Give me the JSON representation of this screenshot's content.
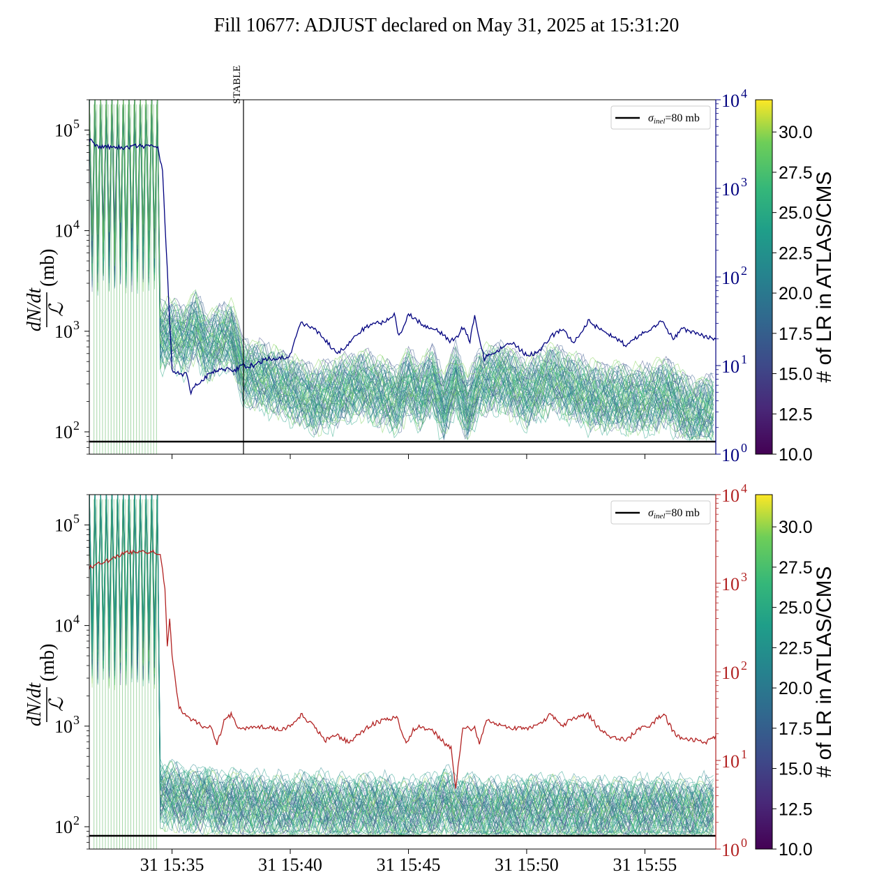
{
  "figure_title": "Fill 10677: ADJUST declared on May 31, 2025 at 15:31:20",
  "colors": {
    "top_right_axis": "#00007f",
    "bottom_right_axis": "#b22222",
    "reference_line": "#000000"
  },
  "chart_data": [
    {
      "type": "line",
      "panel": "top",
      "ylabel_fraction_numerator": "dN/dt",
      "ylabel_fraction_denominator": "ℒ",
      "ylabel_unit": "(mb)",
      "y_left_scale": "log",
      "y_left_range": [
        60,
        200000
      ],
      "y_left_ticks": [
        {
          "mantissa": "10",
          "exp": "2",
          "value": 100
        },
        {
          "mantissa": "10",
          "exp": "3",
          "value": 1000
        },
        {
          "mantissa": "10",
          "exp": "4",
          "value": 10000
        },
        {
          "mantissa": "10",
          "exp": "5",
          "value": 100000
        }
      ],
      "y_right_scale": "log",
      "y_right_range": [
        1,
        10000
      ],
      "y_right_ticks": [
        {
          "mantissa": "10",
          "exp": "0",
          "value": 1
        },
        {
          "mantissa": "10",
          "exp": "1",
          "value": 10
        },
        {
          "mantissa": "10",
          "exp": "2",
          "value": 100
        },
        {
          "mantissa": "10",
          "exp": "3",
          "value": 1000
        },
        {
          "mantissa": "10",
          "exp": "4",
          "value": 10000
        }
      ],
      "x_range_minutes": [
        31.5,
        58.0
      ],
      "reference_line_value": 80,
      "legend_label": "σinel=80 mb",
      "legend_label_main": "σ",
      "legend_label_sub": "inel",
      "legend_label_rest": "=80 mb",
      "legend_position": "top-right",
      "vertical_marker": {
        "label": "STABLE",
        "x_minute": 38.0
      },
      "right_series": {
        "color": "#00007f",
        "points": [
          [
            31.5,
            3500
          ],
          [
            31.9,
            2900
          ],
          [
            32.5,
            2950
          ],
          [
            33.0,
            2900
          ],
          [
            33.5,
            3000
          ],
          [
            34.0,
            2950
          ],
          [
            34.4,
            2950
          ],
          [
            34.6,
            1500
          ],
          [
            34.8,
            120
          ],
          [
            35.0,
            9
          ],
          [
            35.3,
            8
          ],
          [
            35.6,
            8
          ],
          [
            35.8,
            5
          ],
          [
            36.0,
            6
          ],
          [
            36.3,
            7
          ],
          [
            36.6,
            8
          ],
          [
            36.9,
            9
          ],
          [
            37.3,
            9
          ],
          [
            37.7,
            9
          ],
          [
            38.0,
            10
          ],
          [
            38.5,
            10
          ],
          [
            39.0,
            12
          ],
          [
            39.5,
            12
          ],
          [
            40.0,
            13
          ],
          [
            40.4,
            30
          ],
          [
            41.0,
            27
          ],
          [
            41.5,
            19
          ],
          [
            42.0,
            14
          ],
          [
            42.5,
            18
          ],
          [
            43.0,
            25
          ],
          [
            43.5,
            30
          ],
          [
            44.0,
            31
          ],
          [
            44.4,
            38
          ],
          [
            44.6,
            21
          ],
          [
            45.0,
            38
          ],
          [
            45.6,
            29
          ],
          [
            46.2,
            26
          ],
          [
            46.7,
            19
          ],
          [
            47.0,
            20
          ],
          [
            47.3,
            27
          ],
          [
            47.6,
            19
          ],
          [
            47.8,
            36
          ],
          [
            48.2,
            12
          ],
          [
            48.8,
            15
          ],
          [
            49.4,
            18
          ],
          [
            50.0,
            13
          ],
          [
            50.5,
            14
          ],
          [
            51.0,
            21
          ],
          [
            51.5,
            26
          ],
          [
            52.0,
            18
          ],
          [
            52.6,
            32
          ],
          [
            53.0,
            27
          ],
          [
            53.6,
            22
          ],
          [
            54.2,
            17
          ],
          [
            54.7,
            21
          ],
          [
            55.2,
            26
          ],
          [
            55.7,
            32
          ],
          [
            56.2,
            20
          ],
          [
            56.6,
            26
          ],
          [
            57.1,
            24
          ],
          [
            57.6,
            21
          ],
          [
            58.0,
            20
          ]
        ]
      },
      "colorbar": {
        "label": "# of LR in ATLAS/CMS",
        "range": [
          10.0,
          32.0
        ],
        "ticks": [
          "10.0",
          "12.5",
          "15.0",
          "17.5",
          "20.0",
          "22.5",
          "25.0",
          "27.5",
          "30.0"
        ],
        "colormap": "viridis"
      },
      "band_median_points": [
        [
          35.0,
          900
        ],
        [
          35.5,
          800
        ],
        [
          36.0,
          1100
        ],
        [
          36.5,
          650
        ],
        [
          37.0,
          800
        ],
        [
          37.5,
          900
        ],
        [
          38.0,
          380
        ],
        [
          39.0,
          330
        ],
        [
          40.0,
          260
        ],
        [
          41.0,
          200
        ],
        [
          42.0,
          240
        ],
        [
          43.0,
          290
        ],
        [
          44.0,
          230
        ],
        [
          44.5,
          200
        ],
        [
          45.0,
          300
        ],
        [
          45.5,
          220
        ],
        [
          46.0,
          320
        ],
        [
          46.5,
          170
        ],
        [
          47.0,
          330
        ],
        [
          47.5,
          160
        ],
        [
          48.0,
          300
        ],
        [
          49.0,
          340
        ],
        [
          50.0,
          230
        ],
        [
          51.0,
          330
        ],
        [
          52.0,
          260
        ],
        [
          53.0,
          210
        ],
        [
          54.0,
          210
        ],
        [
          55.0,
          200
        ],
        [
          56.0,
          240
        ],
        [
          56.5,
          180
        ],
        [
          57.0,
          150
        ],
        [
          58.0,
          170
        ]
      ]
    },
    {
      "type": "line",
      "panel": "bottom",
      "ylabel_fraction_numerator": "dN/dt",
      "ylabel_fraction_denominator": "ℒ",
      "ylabel_unit": "(mb)",
      "y_left_scale": "log",
      "y_left_range": [
        60,
        200000
      ],
      "y_left_ticks": [
        {
          "mantissa": "10",
          "exp": "2",
          "value": 100
        },
        {
          "mantissa": "10",
          "exp": "3",
          "value": 1000
        },
        {
          "mantissa": "10",
          "exp": "4",
          "value": 10000
        },
        {
          "mantissa": "10",
          "exp": "5",
          "value": 100000
        }
      ],
      "y_right_scale": "log",
      "y_right_range": [
        1,
        10000
      ],
      "y_right_ticks": [
        {
          "mantissa": "10",
          "exp": "0",
          "value": 1
        },
        {
          "mantissa": "10",
          "exp": "1",
          "value": 10
        },
        {
          "mantissa": "10",
          "exp": "2",
          "value": 100
        },
        {
          "mantissa": "10",
          "exp": "3",
          "value": 1000
        },
        {
          "mantissa": "10",
          "exp": "4",
          "value": 10000
        }
      ],
      "x_range_minutes": [
        31.5,
        58.0
      ],
      "x_ticks": [
        {
          "label": "31 15:35",
          "minute": 35
        },
        {
          "label": "31 15:40",
          "minute": 40
        },
        {
          "label": "31 15:45",
          "minute": 45
        },
        {
          "label": "31 15:50",
          "minute": 50
        },
        {
          "label": "31 15:55",
          "minute": 55
        }
      ],
      "reference_line_value": 80,
      "legend_label": "σinel=80 mb",
      "legend_label_main": "σ",
      "legend_label_sub": "inel",
      "legend_label_rest": "=80 mb",
      "legend_position": "top-right",
      "right_series": {
        "color": "#b22222",
        "points": [
          [
            31.5,
            1500
          ],
          [
            32.0,
            1700
          ],
          [
            32.5,
            1900
          ],
          [
            33.0,
            2200
          ],
          [
            33.5,
            2300
          ],
          [
            34.0,
            2250
          ],
          [
            34.5,
            2200
          ],
          [
            34.7,
            900
          ],
          [
            34.8,
            200
          ],
          [
            34.9,
            400
          ],
          [
            35.0,
            150
          ],
          [
            35.3,
            40
          ],
          [
            35.7,
            30
          ],
          [
            36.0,
            28
          ],
          [
            36.3,
            24
          ],
          [
            36.6,
            25
          ],
          [
            36.9,
            15
          ],
          [
            37.2,
            28
          ],
          [
            37.5,
            33
          ],
          [
            37.8,
            23
          ],
          [
            38.5,
            24
          ],
          [
            39.0,
            24
          ],
          [
            39.5,
            22
          ],
          [
            40.0,
            24
          ],
          [
            40.5,
            33
          ],
          [
            41.0,
            24
          ],
          [
            41.5,
            17
          ],
          [
            42.0,
            19
          ],
          [
            42.5,
            16
          ],
          [
            43.0,
            21
          ],
          [
            43.5,
            26
          ],
          [
            44.0,
            29
          ],
          [
            44.5,
            31
          ],
          [
            44.9,
            15
          ],
          [
            45.2,
            22
          ],
          [
            45.5,
            24
          ],
          [
            46.0,
            22
          ],
          [
            46.5,
            16
          ],
          [
            46.8,
            14
          ],
          [
            47.0,
            5
          ],
          [
            47.3,
            23
          ],
          [
            47.8,
            23
          ],
          [
            48.0,
            16
          ],
          [
            48.3,
            29
          ],
          [
            49.0,
            25
          ],
          [
            49.5,
            23
          ],
          [
            50.0,
            23
          ],
          [
            50.5,
            25
          ],
          [
            51.0,
            33
          ],
          [
            51.5,
            25
          ],
          [
            52.0,
            30
          ],
          [
            52.6,
            33
          ],
          [
            53.0,
            24
          ],
          [
            53.6,
            18
          ],
          [
            54.2,
            17
          ],
          [
            54.7,
            22
          ],
          [
            55.2,
            25
          ],
          [
            55.8,
            34
          ],
          [
            56.2,
            21
          ],
          [
            56.6,
            17
          ],
          [
            57.1,
            17
          ],
          [
            57.6,
            16
          ],
          [
            58.0,
            19
          ]
        ]
      },
      "colorbar": {
        "label": "# of LR in ATLAS/CMS",
        "range": [
          10.0,
          32.0
        ],
        "ticks": [
          "10.0",
          "12.5",
          "15.0",
          "17.5",
          "20.0",
          "22.5",
          "25.0",
          "27.5",
          "30.0"
        ],
        "colormap": "viridis"
      },
      "band_median_points": [
        [
          35.0,
          200
        ],
        [
          35.5,
          180
        ],
        [
          36.0,
          170
        ],
        [
          36.5,
          190
        ],
        [
          37.0,
          150
        ],
        [
          37.5,
          170
        ],
        [
          38.0,
          160
        ],
        [
          39.0,
          150
        ],
        [
          40.0,
          145
        ],
        [
          41.0,
          160
        ],
        [
          42.0,
          140
        ],
        [
          43.0,
          150
        ],
        [
          44.0,
          145
        ],
        [
          45.0,
          130
        ],
        [
          45.5,
          150
        ],
        [
          46.0,
          140
        ],
        [
          46.5,
          180
        ],
        [
          47.0,
          140
        ],
        [
          47.5,
          150
        ],
        [
          48.0,
          140
        ],
        [
          49.0,
          135
        ],
        [
          50.0,
          145
        ],
        [
          51.0,
          150
        ],
        [
          52.0,
          140
        ],
        [
          53.0,
          135
        ],
        [
          54.0,
          140
        ],
        [
          55.0,
          140
        ],
        [
          56.0,
          145
        ],
        [
          57.0,
          135
        ],
        [
          58.0,
          150
        ]
      ]
    }
  ]
}
